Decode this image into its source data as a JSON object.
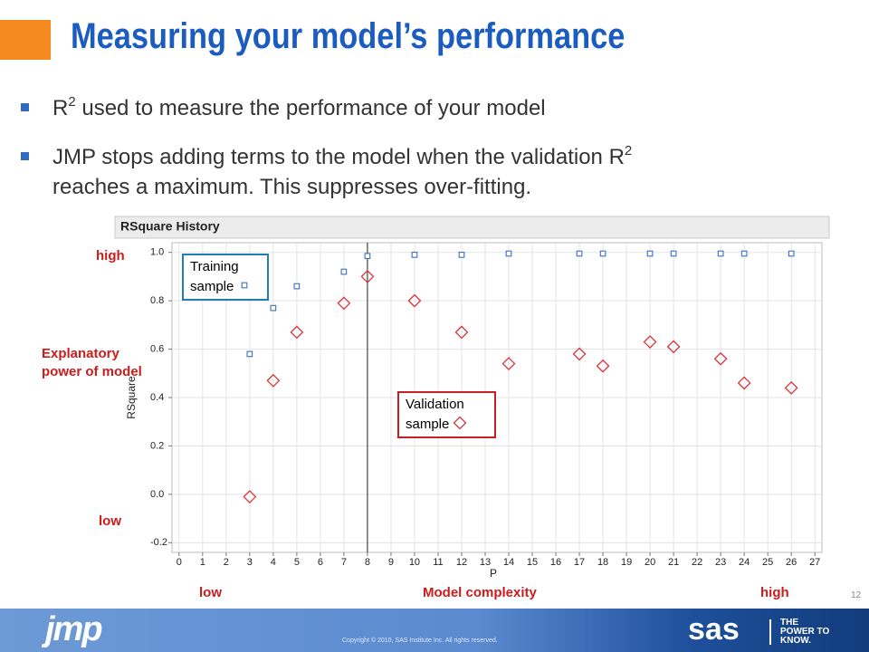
{
  "slide": {
    "title": "Measuring your model’s performance",
    "bullets": [
      {
        "parts": [
          "R",
          "2",
          " used to measure the performance of your model"
        ]
      },
      {
        "parts": [
          "JMP stops adding terms to the model when the validation R",
          "2",
          "reaches a maximum. This suppresses over-fitting."
        ]
      }
    ],
    "number": "12",
    "footer": "Copyright © 2010, SAS Institute Inc. All rights reserved.",
    "logo_left": "jmp",
    "logo_right": "sas",
    "tagline": "THE POWER TO KNOW."
  },
  "chart_data": {
    "type": "scatter",
    "title": "RSquare History",
    "x_label": "P",
    "y_label": "RSquare",
    "x": [
      3,
      4,
      5,
      7,
      8,
      10,
      12,
      14,
      17,
      18,
      20,
      21,
      23,
      24,
      26
    ],
    "series": [
      {
        "name": "Training sample",
        "color": "#3b6fc6",
        "marker": "square",
        "values": [
          0.58,
          0.77,
          0.86,
          0.92,
          0.985,
          0.99,
          0.99,
          0.995,
          0.995,
          0.995,
          0.995,
          0.995,
          0.995,
          0.995,
          0.995
        ]
      },
      {
        "name": "Validation sample",
        "color": "#d8343c",
        "marker": "diamond",
        "values": [
          -0.01,
          0.47,
          0.67,
          0.79,
          0.9,
          0.8,
          0.67,
          0.54,
          0.58,
          0.53,
          0.63,
          0.61,
          0.56,
          0.46,
          0.44
        ]
      }
    ],
    "xlim": [
      -0.3,
      27.3
    ],
    "ylim": [
      -0.24,
      1.04
    ],
    "xticks": [
      0,
      1,
      2,
      3,
      4,
      5,
      6,
      7,
      8,
      9,
      10,
      11,
      12,
      13,
      14,
      15,
      16,
      17,
      18,
      19,
      20,
      21,
      22,
      23,
      24,
      25,
      26,
      27
    ],
    "yticks": [
      {
        "value": 1,
        "label": "1.0"
      },
      0.8,
      0.6,
      0.4,
      0.2,
      {
        "value": 0,
        "label": "0.0"
      },
      -0.2
    ],
    "grid": true,
    "vline": 8,
    "annotations": {
      "y_high": "high",
      "y_note": "Explanatory power of model",
      "y_low": "low",
      "x_low": "low",
      "x_note": "Model complexity",
      "x_high": "high"
    }
  }
}
